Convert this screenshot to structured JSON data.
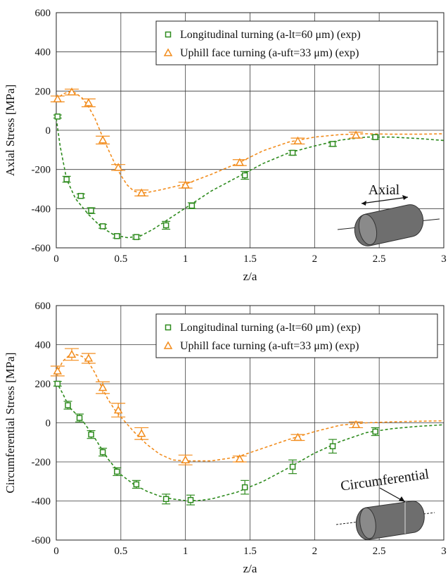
{
  "chart_data": [
    {
      "type": "scatter",
      "xlabel": "z/a",
      "ylabel": "Axial Stress [MPa]",
      "xlim": [
        0,
        3
      ],
      "ylim": [
        -600,
        600
      ],
      "xticks": [
        "0",
        "0.5",
        "1",
        "1.5",
        "2",
        "2.5",
        "3"
      ],
      "yticks": [
        "600",
        "400",
        "200",
        "0",
        "-200",
        "-400",
        "-600"
      ],
      "grid": true,
      "legend_position": "top-right",
      "inset_label": "Axial",
      "series": [
        {
          "name": "Longitudinal turning (a-lt=60 μm) (exp)",
          "color": "#2e8b1e",
          "marker": "square",
          "x": [
            0.01,
            0.08,
            0.19,
            0.27,
            0.36,
            0.47,
            0.62,
            0.85,
            1.05,
            1.46,
            1.83,
            2.14,
            2.47
          ],
          "y": [
            70,
            -250,
            -335,
            -410,
            -490,
            -540,
            -545,
            -485,
            -385,
            -230,
            -115,
            -70,
            -35
          ],
          "yerr": [
            8,
            15,
            10,
            15,
            10,
            10,
            10,
            20,
            15,
            20,
            12,
            12,
            10
          ],
          "fit_x": [
            0,
            0.03,
            0.08,
            0.15,
            0.25,
            0.35,
            0.45,
            0.55,
            0.65,
            0.75,
            0.9,
            1.05,
            1.2,
            1.4,
            1.6,
            1.8,
            2.0,
            2.2,
            2.4,
            2.6,
            2.8,
            3.0
          ],
          "fit_y": [
            60,
            -80,
            -250,
            -350,
            -430,
            -495,
            -535,
            -548,
            -540,
            -505,
            -440,
            -375,
            -310,
            -240,
            -170,
            -115,
            -80,
            -50,
            -35,
            -35,
            -42,
            -52
          ]
        },
        {
          "name": "Uphill face turning (a-uft=33 μm) (exp)",
          "color": "#f28c1c",
          "marker": "triangle",
          "x": [
            0.01,
            0.12,
            0.25,
            0.36,
            0.48,
            0.66,
            1.0,
            1.42,
            1.87,
            2.32
          ],
          "y": [
            160,
            195,
            140,
            -50,
            -190,
            -320,
            -280,
            -165,
            -55,
            -25
          ],
          "yerr": [
            15,
            15,
            20,
            20,
            15,
            15,
            15,
            15,
            15,
            15
          ],
          "fit_x": [
            0,
            0.05,
            0.1,
            0.15,
            0.2,
            0.25,
            0.3,
            0.35,
            0.4,
            0.45,
            0.5,
            0.55,
            0.6,
            0.65,
            0.7,
            0.8,
            0.9,
            1.0,
            1.2,
            1.4,
            1.6,
            1.8,
            2.0,
            2.2,
            2.4,
            2.6,
            2.8,
            3.0
          ],
          "fit_y": [
            155,
            185,
            197,
            190,
            165,
            120,
            60,
            -20,
            -95,
            -165,
            -230,
            -280,
            -310,
            -320,
            -318,
            -305,
            -290,
            -275,
            -225,
            -170,
            -105,
            -60,
            -35,
            -22,
            -18,
            -20,
            -20,
            -18
          ]
        }
      ]
    },
    {
      "type": "scatter",
      "xlabel": "z/a",
      "ylabel": "Circumferential Stress [MPa]",
      "xlim": [
        0,
        3
      ],
      "ylim": [
        -600,
        600
      ],
      "xticks": [
        "0",
        "0.5",
        "1",
        "1.5",
        "2",
        "2.5",
        "3"
      ],
      "yticks": [
        "600",
        "400",
        "200",
        "0",
        "-200",
        "-400",
        "-600"
      ],
      "grid": true,
      "legend_position": "top-right",
      "inset_label": "Circumferential",
      "series": [
        {
          "name": "Longitudinal turning (a-lt=60 μm) (exp)",
          "color": "#2e8b1e",
          "marker": "square",
          "x": [
            0.01,
            0.09,
            0.18,
            0.27,
            0.36,
            0.47,
            0.62,
            0.85,
            1.04,
            1.46,
            1.83,
            2.14,
            2.47
          ],
          "y": [
            200,
            90,
            25,
            -60,
            -150,
            -250,
            -315,
            -390,
            -395,
            -330,
            -225,
            -120,
            -45
          ],
          "yerr": [
            12,
            20,
            20,
            20,
            20,
            20,
            20,
            25,
            25,
            35,
            35,
            35,
            20
          ],
          "fit_x": [
            0,
            0.05,
            0.1,
            0.2,
            0.3,
            0.4,
            0.5,
            0.6,
            0.7,
            0.8,
            0.9,
            1.0,
            1.1,
            1.2,
            1.4,
            1.6,
            1.8,
            2.0,
            2.2,
            2.4,
            2.6,
            2.8,
            3.0
          ],
          "fit_y": [
            210,
            150,
            80,
            15,
            -80,
            -185,
            -265,
            -315,
            -350,
            -375,
            -390,
            -398,
            -398,
            -390,
            -355,
            -300,
            -230,
            -155,
            -95,
            -50,
            -30,
            -18,
            -10
          ]
        },
        {
          "name": "Uphill face turning (a-uft=33 μm) (exp)",
          "color": "#f28c1c",
          "marker": "triangle",
          "x": [
            0.01,
            0.12,
            0.25,
            0.36,
            0.48,
            0.66,
            1.0,
            1.42,
            1.87,
            2.32
          ],
          "y": [
            265,
            350,
            330,
            180,
            65,
            -55,
            -190,
            -185,
            -75,
            -10
          ],
          "yerr": [
            25,
            30,
            25,
            30,
            35,
            30,
            25,
            15,
            15,
            15
          ],
          "fit_x": [
            0,
            0.05,
            0.1,
            0.15,
            0.2,
            0.25,
            0.3,
            0.35,
            0.4,
            0.45,
            0.5,
            0.6,
            0.7,
            0.8,
            0.9,
            1.0,
            1.2,
            1.4,
            1.6,
            1.8,
            2.0,
            2.2,
            2.4,
            2.6,
            2.8,
            3.0
          ],
          "fit_y": [
            250,
            315,
            345,
            350,
            340,
            310,
            255,
            185,
            120,
            70,
            30,
            -45,
            -110,
            -160,
            -190,
            -195,
            -195,
            -175,
            -130,
            -85,
            -45,
            -12,
            0,
            5,
            8,
            10
          ]
        }
      ]
    }
  ]
}
